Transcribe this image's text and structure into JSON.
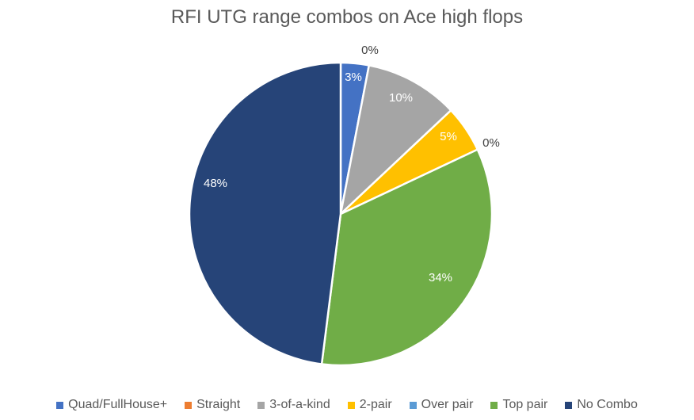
{
  "chart_data": {
    "type": "pie",
    "title": "RFI UTG range combos on Ace high flops",
    "legend_position": "bottom",
    "slices": [
      {
        "label": "Quad/FullHouse+",
        "value": 3,
        "display": "3%",
        "color": "#4472C4"
      },
      {
        "label": "Straight",
        "value": 0,
        "display": "0%",
        "color": "#ED7D31"
      },
      {
        "label": "3-of-a-kind",
        "value": 10,
        "display": "10%",
        "color": "#A5A5A5"
      },
      {
        "label": "2-pair",
        "value": 5,
        "display": "5%",
        "color": "#FFC000"
      },
      {
        "label": "Over pair",
        "value": 0,
        "display": "0%",
        "color": "#5B9BD5"
      },
      {
        "label": "Top pair",
        "value": 34,
        "display": "34%",
        "color": "#70AD47"
      },
      {
        "label": "No Combo",
        "value": 48,
        "display": "48%",
        "color": "#264478"
      }
    ]
  }
}
